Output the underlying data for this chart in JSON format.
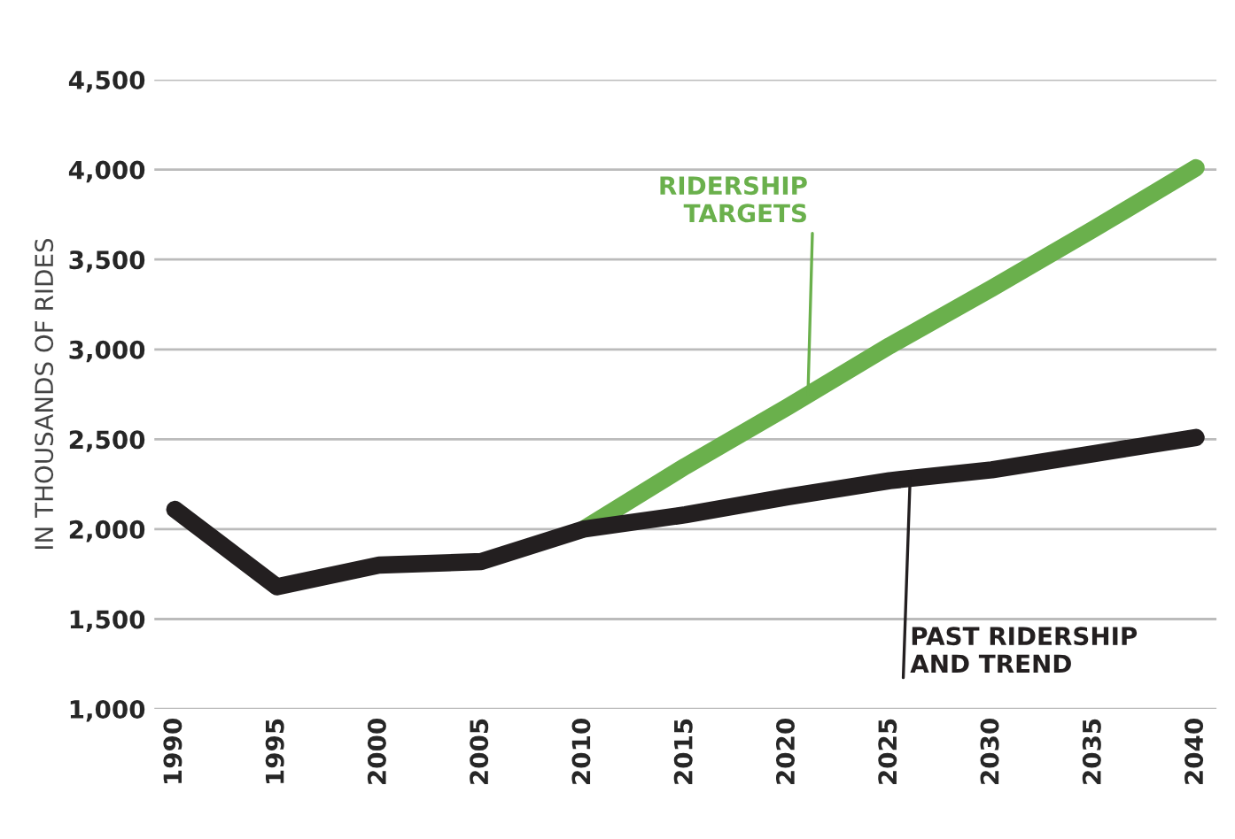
{
  "chart_data": {
    "type": "line",
    "ylabel": "IN THOUSANDS OF RIDES",
    "x": [
      1990,
      1995,
      2000,
      2005,
      2010,
      2015,
      2020,
      2025,
      2030,
      2035,
      2040
    ],
    "series": [
      {
        "color": "#6ab04c",
        "x": [
          2010,
          2015,
          2020,
          2025,
          2030,
          2035,
          2040
        ],
        "values": [
          2000,
          2350,
          2680,
          3020,
          3340,
          3670,
          4010
        ]
      },
      {
        "color": "#231f20",
        "values": [
          2110,
          1680,
          1800,
          1820,
          2000,
          2080,
          2180,
          2270,
          2330,
          2420,
          2510
        ]
      }
    ],
    "annotations": [
      {
        "text": "RIDERSHIP\nTARGETS",
        "x": 2021,
        "y": 2750
      },
      {
        "text": "PAST RIDERSHIP\nAND TREND",
        "x": 2026,
        "y": 2280
      }
    ],
    "xlim": [
      1989,
      2041
    ],
    "ylim": [
      1000,
      4500
    ],
    "xticks": [
      1990,
      1995,
      2000,
      2005,
      2010,
      2015,
      2020,
      2025,
      2030,
      2035,
      2040
    ],
    "yticks": [
      {
        "value": 1000,
        "label": "1,000"
      },
      {
        "value": 1500,
        "label": "1,500"
      },
      {
        "value": 2000,
        "label": "2,000"
      },
      {
        "value": 2500,
        "label": "2,500"
      },
      {
        "value": 3000,
        "label": "3,000"
      },
      {
        "value": 3500,
        "label": "3,500"
      },
      {
        "value": 4000,
        "label": "4,000"
      },
      {
        "value": 4500,
        "label": "4,500"
      }
    ],
    "grid": "y",
    "legend": false,
    "marker": "none",
    "line_style": "solid"
  }
}
